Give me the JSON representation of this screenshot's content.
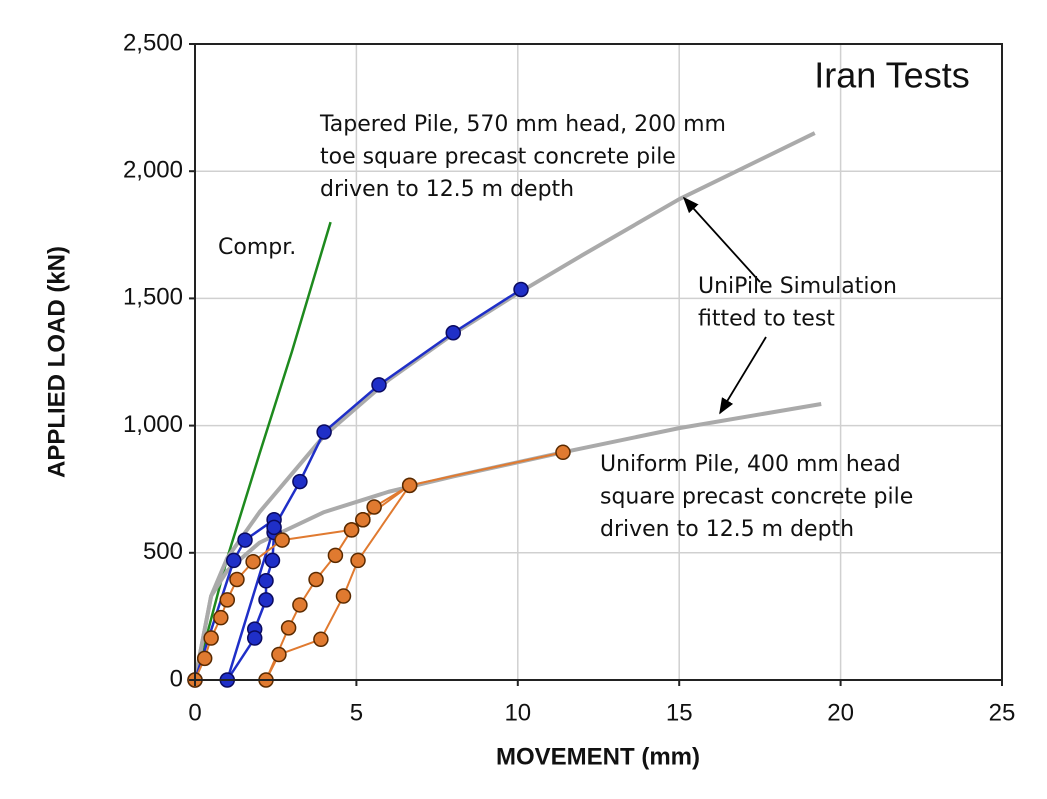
{
  "chart_data": {
    "type": "line",
    "title": "Iran Tests",
    "x_label": "MOVEMENT (mm)",
    "y_label": "APPLIED LOAD (kN)",
    "xlim": [
      0,
      25
    ],
    "ylim": [
      0,
      2500
    ],
    "xticks": [
      0,
      5,
      10,
      15,
      20,
      25
    ],
    "yticks": [
      0,
      500,
      {
        "value": 1000,
        "label": "1,000"
      },
      {
        "value": 1500,
        "label": "1,500"
      },
      {
        "value": 2000,
        "label": "2,000"
      },
      {
        "value": 2500,
        "label": "2,500"
      }
    ],
    "grid": true,
    "series": [
      {
        "name": "Compr.",
        "color": "#1e8a1e",
        "markers": false,
        "x": [
          0,
          1.0,
          2.0,
          3.0,
          4.2
        ],
        "y": [
          0,
          480,
          890,
          1290,
          1800
        ]
      },
      {
        "color": "#aaaaaa",
        "markers": false,
        "x": [
          0,
          0.5,
          1,
          2,
          4,
          6,
          8,
          10,
          12,
          15,
          19.2
        ],
        "y": [
          0,
          330,
          480,
          660,
          960,
          1180,
          1360,
          1520,
          1670,
          1890,
          2150
        ]
      },
      {
        "color": "#aaaaaa",
        "markers": false,
        "x": [
          0,
          0.5,
          1,
          2,
          4,
          6,
          8,
          11.4,
          15,
          19.4
        ],
        "y": [
          0,
          330,
          430,
          540,
          660,
          740,
          800,
          895,
          990,
          1085
        ]
      },
      {
        "color": "#1f2fc8",
        "markers": true,
        "x": [
          0,
          1.2,
          1.55,
          2.45,
          2.45,
          2.4,
          2.2,
          2.2,
          1.85,
          1.85,
          1.0,
          2.45,
          3.25,
          4.0,
          5.7,
          8.0,
          10.1
        ],
        "y": [
          0,
          470,
          550,
          630,
          580,
          470,
          390,
          315,
          200,
          165,
          0,
          600,
          780,
          975,
          1160,
          1365,
          1535
        ]
      },
      {
        "color": "#e07a30",
        "markers": true,
        "x": [
          0,
          0.3,
          0.5,
          0.8,
          1.0,
          1.3,
          1.8,
          2.7,
          4.85,
          5.2,
          5.55,
          6.65,
          5.05,
          4.6,
          3.9,
          2.6,
          2.2,
          2.9,
          3.25,
          3.75,
          4.35,
          4.85,
          5.2,
          6.65,
          11.4
        ],
        "y": [
          0,
          85,
          165,
          245,
          315,
          395,
          465,
          550,
          590,
          630,
          680,
          765,
          470,
          330,
          160,
          100,
          0,
          205,
          295,
          395,
          490,
          590,
          630,
          765,
          895
        ]
      }
    ],
    "annotations": [
      {
        "lines": [
          "Tapered Pile,  570 mm head,  200 mm",
          "toe square precast concrete pile",
          "driven  to 12.5  m depth"
        ]
      },
      {
        "lines": [
          "UniPile Simulation",
          "fitted to test"
        ]
      },
      {
        "lines": [
          "Uniform Pile, 400 mm head",
          "square precast concrete pile",
          "driven to 12.5  m depth"
        ]
      }
    ]
  }
}
